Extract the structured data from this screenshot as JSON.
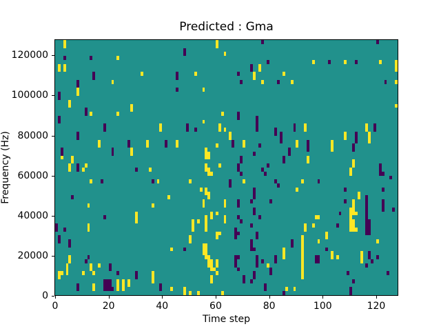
{
  "title": "Predicted : Gma",
  "chart_data": {
    "type": "heatmap",
    "title": "Predicted : Gma",
    "xlabel": "Time step",
    "ylabel": "Frequency (Hz)",
    "x_range": [
      0,
      128
    ],
    "y_range": [
      0,
      128000
    ],
    "x_ticks": [
      0,
      20,
      40,
      60,
      80,
      100,
      120
    ],
    "y_ticks": [
      0,
      20000,
      40000,
      60000,
      80000,
      100000,
      120000
    ],
    "grid_cols": 128,
    "grid_rows": 64,
    "grid": "off",
    "legend": "none",
    "colors": {
      "background": "#21918c",
      "high": "#fde725",
      "low": "#440154"
    },
    "cell_note": "cells as [col,row], row 0 = top of plot (highest frequency), col 0 = time step 0",
    "cells_high": [
      [
        3,
        0
      ],
      [
        3,
        1
      ],
      [
        60,
        0
      ],
      [
        60,
        1
      ],
      [
        1,
        6
      ],
      [
        1,
        7
      ],
      [
        3,
        6
      ],
      [
        3,
        7
      ],
      [
        23,
        4
      ],
      [
        32,
        8
      ],
      [
        21,
        10
      ],
      [
        8,
        12
      ],
      [
        8,
        13
      ],
      [
        5,
        15
      ],
      [
        5,
        16
      ],
      [
        28,
        16
      ],
      [
        28,
        17
      ],
      [
        13,
        18
      ],
      [
        23,
        18
      ],
      [
        39,
        21
      ],
      [
        39,
        22
      ],
      [
        16,
        25
      ],
      [
        16,
        26
      ],
      [
        34,
        25
      ],
      [
        34,
        26
      ],
      [
        28,
        27
      ],
      [
        28,
        28
      ],
      [
        6,
        29
      ],
      [
        6,
        30
      ],
      [
        2,
        29
      ],
      [
        5,
        31
      ],
      [
        11,
        31
      ],
      [
        63,
        3
      ],
      [
        52,
        8
      ],
      [
        85,
        8
      ],
      [
        76,
        6
      ],
      [
        76,
        7
      ],
      [
        74,
        8
      ],
      [
        74,
        9
      ],
      [
        77,
        10
      ],
      [
        55,
        12
      ],
      [
        62,
        18
      ],
      [
        55,
        20
      ],
      [
        61,
        21
      ],
      [
        61,
        22
      ],
      [
        63,
        22
      ],
      [
        65,
        23
      ],
      [
        65,
        24
      ],
      [
        70,
        25
      ],
      [
        70,
        26
      ],
      [
        45,
        25
      ],
      [
        45,
        26
      ],
      [
        60,
        26
      ],
      [
        56,
        27
      ],
      [
        56,
        28
      ],
      [
        56,
        29
      ],
      [
        57,
        28
      ],
      [
        57,
        29
      ],
      [
        56,
        31
      ],
      [
        61,
        31
      ],
      [
        96,
        5
      ],
      [
        108,
        5
      ],
      [
        121,
        5
      ],
      [
        127,
        5
      ],
      [
        127,
        6
      ],
      [
        127,
        7
      ],
      [
        88,
        10
      ],
      [
        127,
        10
      ],
      [
        127,
        16
      ],
      [
        93,
        21
      ],
      [
        93,
        22
      ],
      [
        116,
        21
      ],
      [
        116,
        22
      ],
      [
        117,
        23
      ],
      [
        117,
        24
      ],
      [
        117,
        25
      ],
      [
        90,
        25
      ],
      [
        90,
        26
      ],
      [
        108,
        23
      ],
      [
        108,
        24
      ],
      [
        103,
        25
      ],
      [
        103,
        26
      ],
      [
        103,
        27
      ],
      [
        94,
        29
      ],
      [
        94,
        30
      ],
      [
        111,
        30
      ],
      [
        111,
        31
      ],
      [
        5,
        32
      ],
      [
        10,
        32
      ],
      [
        35,
        32
      ],
      [
        13,
        35
      ],
      [
        38,
        35
      ],
      [
        42,
        39
      ],
      [
        12,
        41
      ],
      [
        36,
        41
      ],
      [
        30,
        43
      ],
      [
        30,
        44
      ],
      [
        30,
        45
      ],
      [
        12,
        46
      ],
      [
        12,
        47
      ],
      [
        5,
        54
      ],
      [
        5,
        55
      ],
      [
        4,
        56
      ],
      [
        4,
        57
      ],
      [
        13,
        56
      ],
      [
        13,
        57
      ],
      [
        16,
        56
      ],
      [
        1,
        58
      ],
      [
        2,
        58
      ],
      [
        4,
        58
      ],
      [
        10,
        58
      ],
      [
        14,
        58
      ],
      [
        1,
        59
      ],
      [
        23,
        60
      ],
      [
        23,
        61
      ],
      [
        23,
        62
      ],
      [
        25,
        60
      ],
      [
        25,
        61
      ],
      [
        25,
        62
      ],
      [
        27,
        60
      ],
      [
        27,
        61
      ],
      [
        14,
        61
      ],
      [
        14,
        62
      ],
      [
        36,
        58
      ],
      [
        36,
        59
      ],
      [
        36,
        60
      ],
      [
        56,
        32
      ],
      [
        57,
        32
      ],
      [
        57,
        33
      ],
      [
        58,
        33
      ],
      [
        50,
        35
      ],
      [
        70,
        35
      ],
      [
        54,
        37
      ],
      [
        56,
        37
      ],
      [
        56,
        38
      ],
      [
        57,
        38
      ],
      [
        57,
        39
      ],
      [
        55,
        40
      ],
      [
        55,
        41
      ],
      [
        63,
        40
      ],
      [
        63,
        41
      ],
      [
        58,
        43
      ],
      [
        58,
        44
      ],
      [
        60,
        43
      ],
      [
        63,
        44
      ],
      [
        63,
        45
      ],
      [
        51,
        45
      ],
      [
        51,
        46
      ],
      [
        51,
        47
      ],
      [
        56,
        44
      ],
      [
        56,
        45
      ],
      [
        56,
        46
      ],
      [
        56,
        47
      ],
      [
        53,
        45
      ],
      [
        60,
        48
      ],
      [
        60,
        49
      ],
      [
        61,
        48
      ],
      [
        50,
        49
      ],
      [
        50,
        50
      ],
      [
        43,
        52
      ],
      [
        55,
        51
      ],
      [
        56,
        51
      ],
      [
        55,
        52
      ],
      [
        56,
        52
      ],
      [
        55,
        53
      ],
      [
        56,
        53
      ],
      [
        56,
        54
      ],
      [
        57,
        54
      ],
      [
        57,
        55
      ],
      [
        58,
        55
      ],
      [
        60,
        55
      ],
      [
        57,
        56
      ],
      [
        58,
        56
      ],
      [
        60,
        56
      ],
      [
        58,
        57
      ],
      [
        59,
        57
      ],
      [
        58,
        59
      ],
      [
        58,
        60
      ],
      [
        60,
        58
      ],
      [
        79,
        56
      ],
      [
        85,
        52
      ],
      [
        85,
        53
      ],
      [
        85,
        54
      ],
      [
        48,
        62
      ],
      [
        48,
        63
      ],
      [
        43,
        62
      ],
      [
        50,
        63
      ],
      [
        53,
        63
      ],
      [
        62,
        63
      ],
      [
        86,
        62
      ],
      [
        110,
        32
      ],
      [
        110,
        33
      ],
      [
        92,
        35
      ],
      [
        90,
        37
      ],
      [
        113,
        38
      ],
      [
        113,
        39
      ],
      [
        111,
        40
      ],
      [
        111,
        41
      ],
      [
        111,
        42
      ],
      [
        111,
        43
      ],
      [
        111,
        45
      ],
      [
        111,
        46
      ],
      [
        111,
        47
      ],
      [
        110,
        42
      ],
      [
        110,
        43
      ],
      [
        110,
        44
      ],
      [
        110,
        45
      ],
      [
        110,
        46
      ],
      [
        110,
        47
      ],
      [
        112,
        43
      ],
      [
        112,
        47
      ],
      [
        97,
        44
      ],
      [
        98,
        44
      ],
      [
        96,
        46
      ],
      [
        93,
        46
      ],
      [
        93,
        47
      ],
      [
        101,
        48
      ],
      [
        101,
        49
      ],
      [
        98,
        50
      ],
      [
        92,
        49
      ],
      [
        92,
        50
      ],
      [
        92,
        51
      ],
      [
        92,
        52
      ],
      [
        92,
        53
      ],
      [
        92,
        54
      ],
      [
        92,
        55
      ],
      [
        92,
        56
      ],
      [
        92,
        57
      ],
      [
        92,
        58
      ],
      [
        92,
        59
      ],
      [
        120,
        50
      ],
      [
        114,
        53
      ],
      [
        114,
        54
      ],
      [
        114,
        55
      ],
      [
        103,
        53
      ],
      [
        103,
        54
      ],
      [
        105,
        54
      ],
      [
        89,
        62
      ]
    ],
    "cells_low": [
      [
        3,
        4
      ],
      [
        13,
        4
      ],
      [
        14,
        8
      ],
      [
        14,
        9
      ],
      [
        8,
        10
      ],
      [
        8,
        11
      ],
      [
        1,
        13
      ],
      [
        1,
        14
      ],
      [
        11,
        17
      ],
      [
        11,
        18
      ],
      [
        1,
        19
      ],
      [
        1,
        20
      ],
      [
        18,
        21
      ],
      [
        18,
        22
      ],
      [
        8,
        23
      ],
      [
        8,
        24
      ],
      [
        21,
        27
      ],
      [
        21,
        28
      ],
      [
        41,
        25
      ],
      [
        41,
        26
      ],
      [
        27,
        25
      ],
      [
        27,
        26
      ],
      [
        2,
        27
      ],
      [
        2,
        28
      ],
      [
        8,
        31
      ],
      [
        120,
        0
      ],
      [
        48,
        2
      ],
      [
        48,
        3
      ],
      [
        77,
        0
      ],
      [
        79,
        5
      ],
      [
        73,
        6
      ],
      [
        73,
        7
      ],
      [
        68,
        8
      ],
      [
        69,
        10
      ],
      [
        45,
        8
      ],
      [
        45,
        9
      ],
      [
        45,
        12
      ],
      [
        83,
        10
      ],
      [
        68,
        18
      ],
      [
        68,
        19
      ],
      [
        49,
        21
      ],
      [
        49,
        22
      ],
      [
        52,
        22
      ],
      [
        75,
        19
      ],
      [
        75,
        20
      ],
      [
        75,
        21
      ],
      [
        75,
        22
      ],
      [
        82,
        22
      ],
      [
        82,
        23
      ],
      [
        66,
        25
      ],
      [
        66,
        26
      ],
      [
        84,
        23
      ],
      [
        84,
        24
      ],
      [
        84,
        25
      ],
      [
        76,
        26
      ],
      [
        74,
        28
      ],
      [
        69,
        29
      ],
      [
        69,
        30
      ],
      [
        68,
        31
      ],
      [
        79,
        31
      ],
      [
        102,
        5
      ],
      [
        112,
        5
      ],
      [
        123,
        10
      ],
      [
        89,
        21
      ],
      [
        89,
        22
      ],
      [
        119,
        21
      ],
      [
        119,
        22
      ],
      [
        94,
        25
      ],
      [
        94,
        26
      ],
      [
        94,
        27
      ],
      [
        112,
        23
      ],
      [
        112,
        24
      ],
      [
        112,
        25
      ],
      [
        87,
        27
      ],
      [
        87,
        28
      ],
      [
        85,
        29
      ],
      [
        85,
        30
      ],
      [
        111,
        26
      ],
      [
        111,
        27
      ],
      [
        121,
        31
      ],
      [
        8,
        32
      ],
      [
        30,
        32
      ],
      [
        17,
        35
      ],
      [
        36,
        35
      ],
      [
        6,
        39
      ],
      [
        18,
        44
      ],
      [
        0,
        46
      ],
      [
        0,
        47
      ],
      [
        3,
        47
      ],
      [
        1,
        49
      ],
      [
        1,
        50
      ],
      [
        5,
        50
      ],
      [
        5,
        51
      ],
      [
        12,
        54
      ],
      [
        11,
        55
      ],
      [
        20,
        56
      ],
      [
        20,
        57
      ],
      [
        23,
        58
      ],
      [
        18,
        60
      ],
      [
        18,
        61
      ],
      [
        18,
        62
      ],
      [
        19,
        60
      ],
      [
        19,
        61
      ],
      [
        19,
        62
      ],
      [
        20,
        60
      ],
      [
        20,
        61
      ],
      [
        20,
        62
      ],
      [
        21,
        62
      ],
      [
        8,
        61
      ],
      [
        8,
        62
      ],
      [
        30,
        58
      ],
      [
        30,
        59
      ],
      [
        39,
        61
      ],
      [
        39,
        62
      ],
      [
        68,
        32
      ],
      [
        69,
        33
      ],
      [
        77,
        32
      ],
      [
        78,
        33
      ],
      [
        82,
        35
      ],
      [
        83,
        36
      ],
      [
        65,
        35
      ],
      [
        65,
        36
      ],
      [
        74,
        37
      ],
      [
        74,
        38
      ],
      [
        74,
        39
      ],
      [
        73,
        40
      ],
      [
        68,
        40
      ],
      [
        68,
        41
      ],
      [
        80,
        40
      ],
      [
        74,
        42
      ],
      [
        74,
        43
      ],
      [
        76,
        44
      ],
      [
        68,
        44
      ],
      [
        69,
        45
      ],
      [
        73,
        46
      ],
      [
        67,
        47
      ],
      [
        67,
        48
      ],
      [
        67,
        49
      ],
      [
        68,
        48
      ],
      [
        75,
        48
      ],
      [
        75,
        49
      ],
      [
        73,
        50
      ],
      [
        73,
        51
      ],
      [
        73,
        52
      ],
      [
        74,
        52
      ],
      [
        48,
        52
      ],
      [
        75,
        54
      ],
      [
        75,
        55
      ],
      [
        75,
        56
      ],
      [
        67,
        54
      ],
      [
        67,
        55
      ],
      [
        67,
        56
      ],
      [
        68,
        54
      ],
      [
        68,
        57
      ],
      [
        70,
        59
      ],
      [
        70,
        60
      ],
      [
        73,
        60
      ],
      [
        74,
        58
      ],
      [
        74,
        59
      ],
      [
        77,
        55
      ],
      [
        80,
        57
      ],
      [
        80,
        58
      ],
      [
        82,
        54
      ],
      [
        82,
        55
      ],
      [
        78,
        61
      ],
      [
        78,
        62
      ],
      [
        85,
        63
      ],
      [
        121,
        32
      ],
      [
        121,
        33
      ],
      [
        122,
        33
      ],
      [
        125,
        34
      ],
      [
        98,
        35
      ],
      [
        108,
        37
      ],
      [
        122,
        37
      ],
      [
        108,
        40
      ],
      [
        116,
        39
      ],
      [
        116,
        40
      ],
      [
        116,
        41
      ],
      [
        116,
        42
      ],
      [
        116,
        43
      ],
      [
        116,
        44
      ],
      [
        116,
        45
      ],
      [
        116,
        46
      ],
      [
        116,
        47
      ],
      [
        116,
        48
      ],
      [
        117,
        45
      ],
      [
        117,
        46
      ],
      [
        117,
        47
      ],
      [
        117,
        48
      ],
      [
        122,
        40
      ],
      [
        122,
        41
      ],
      [
        122,
        42
      ],
      [
        126,
        42
      ],
      [
        106,
        43
      ],
      [
        105,
        46
      ],
      [
        88,
        50
      ],
      [
        88,
        51
      ],
      [
        101,
        52
      ],
      [
        97,
        54
      ],
      [
        98,
        54
      ],
      [
        97,
        55
      ],
      [
        98,
        55
      ],
      [
        117,
        53
      ],
      [
        117,
        54
      ],
      [
        118,
        55
      ],
      [
        120,
        54
      ],
      [
        116,
        56
      ],
      [
        109,
        58
      ],
      [
        124,
        58
      ],
      [
        111,
        60
      ],
      [
        110,
        62
      ],
      [
        110,
        63
      ]
    ]
  }
}
